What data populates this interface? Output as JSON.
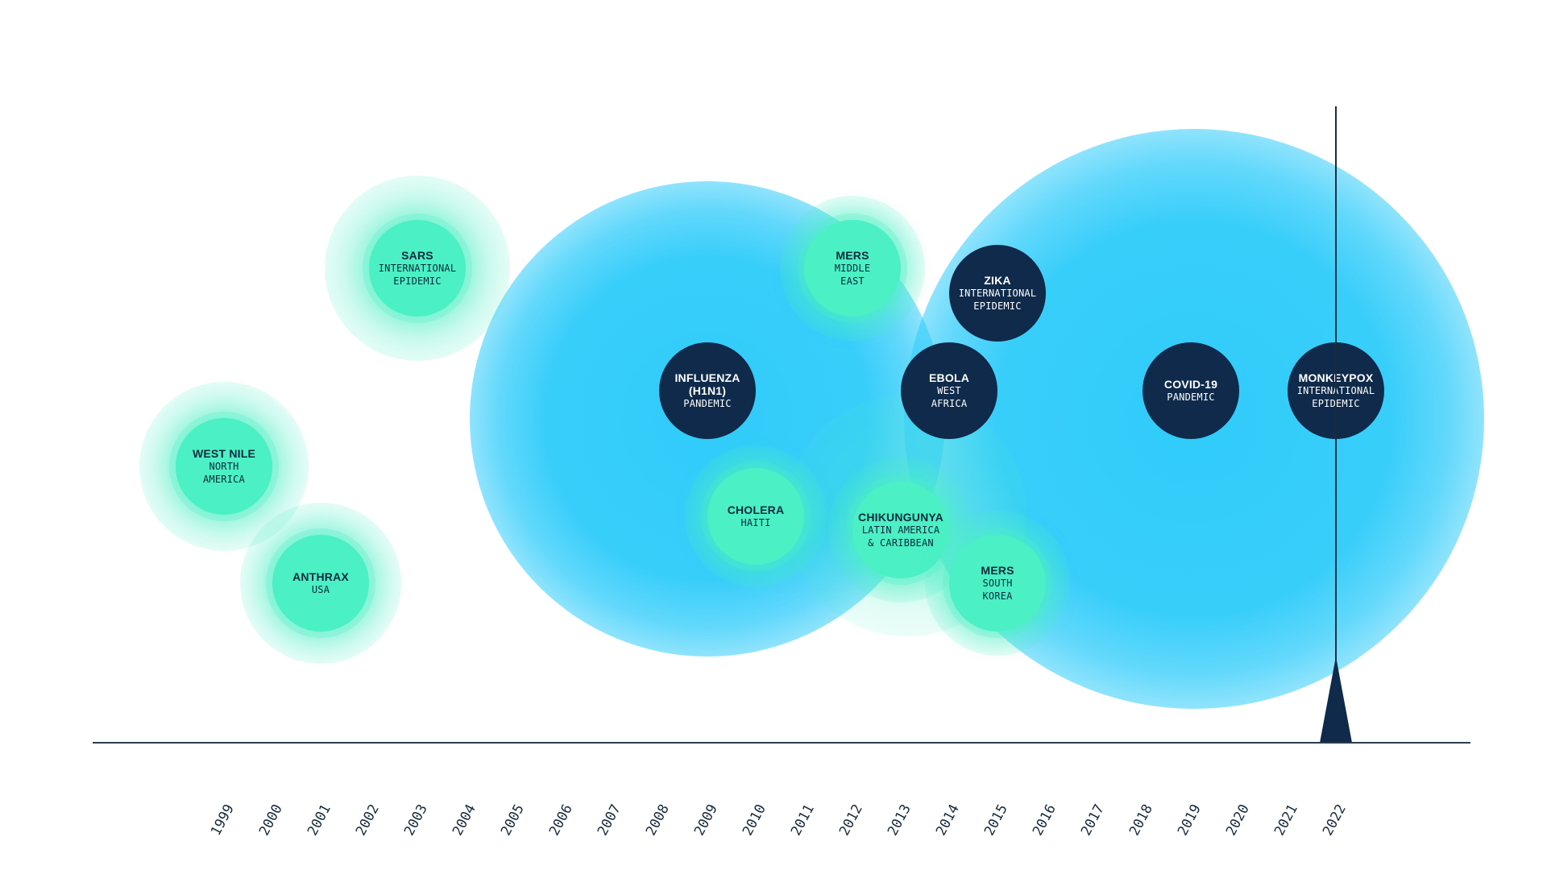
{
  "timeline": {
    "years": [
      "1999",
      "2000",
      "2001",
      "2002",
      "2003",
      "2004",
      "2005",
      "2006",
      "2007",
      "2008",
      "2009",
      "2010",
      "2011",
      "2012",
      "2013",
      "2014",
      "2015",
      "2016",
      "2017",
      "2018",
      "2019",
      "2020",
      "2021",
      "2022"
    ],
    "marker_year": "2022",
    "colors": {
      "pandemic_fill": "#0f2a4a",
      "epidemic_fill": "#4bf0c4",
      "glow_blue": "#2dcbfa",
      "glow_green": "#48ecc4",
      "axis": "#2a3d4f"
    }
  },
  "events": [
    {
      "id": "west-nile",
      "name": "WEST NILE",
      "sub": [
        "NORTH",
        "AMERICA"
      ],
      "year": "1999",
      "style": "green"
    },
    {
      "id": "anthrax",
      "name": "ANTHRAX",
      "sub": [
        "USA"
      ],
      "year": "2001",
      "style": "green"
    },
    {
      "id": "sars",
      "name": "SARS",
      "sub": [
        "INTERNATIONAL",
        "EPIDEMIC"
      ],
      "year": "2003",
      "style": "green"
    },
    {
      "id": "influenza",
      "name": "INFLUENZA (H1N1)",
      "name_lines": [
        "INFLUENZA",
        "(H1N1)"
      ],
      "sub": [
        "PANDEMIC"
      ],
      "year": "2009",
      "style": "dark"
    },
    {
      "id": "cholera",
      "name": "CHOLERA",
      "sub": [
        "HAITI"
      ],
      "year": "2010",
      "style": "green"
    },
    {
      "id": "mers-middle-east",
      "name": "MERS",
      "sub": [
        "MIDDLE",
        "EAST"
      ],
      "year": "2012",
      "style": "green"
    },
    {
      "id": "chikungunya",
      "name": "CHIKUNGUNYA",
      "sub": [
        "LATIN AMERICA",
        "& CARIBBEAN"
      ],
      "year": "2013",
      "style": "green"
    },
    {
      "id": "ebola",
      "name": "EBOLA",
      "sub": [
        "WEST",
        "AFRICA"
      ],
      "year": "2014",
      "style": "dark"
    },
    {
      "id": "zika",
      "name": "ZIKA",
      "sub": [
        "INTERNATIONAL",
        "EPIDEMIC"
      ],
      "year": "2015",
      "style": "dark"
    },
    {
      "id": "mers-south-korea",
      "name": "MERS",
      "sub": [
        "SOUTH",
        "KOREA"
      ],
      "year": "2015",
      "style": "green"
    },
    {
      "id": "covid-19",
      "name": "COVID-19",
      "sub": [
        "PANDEMIC"
      ],
      "year": "2019",
      "style": "dark"
    },
    {
      "id": "monkeypox",
      "name": "MONKEYPOX",
      "sub": [
        "INTERNATIONAL",
        "EPIDEMIC"
      ],
      "year": "2022",
      "style": "dark"
    }
  ]
}
